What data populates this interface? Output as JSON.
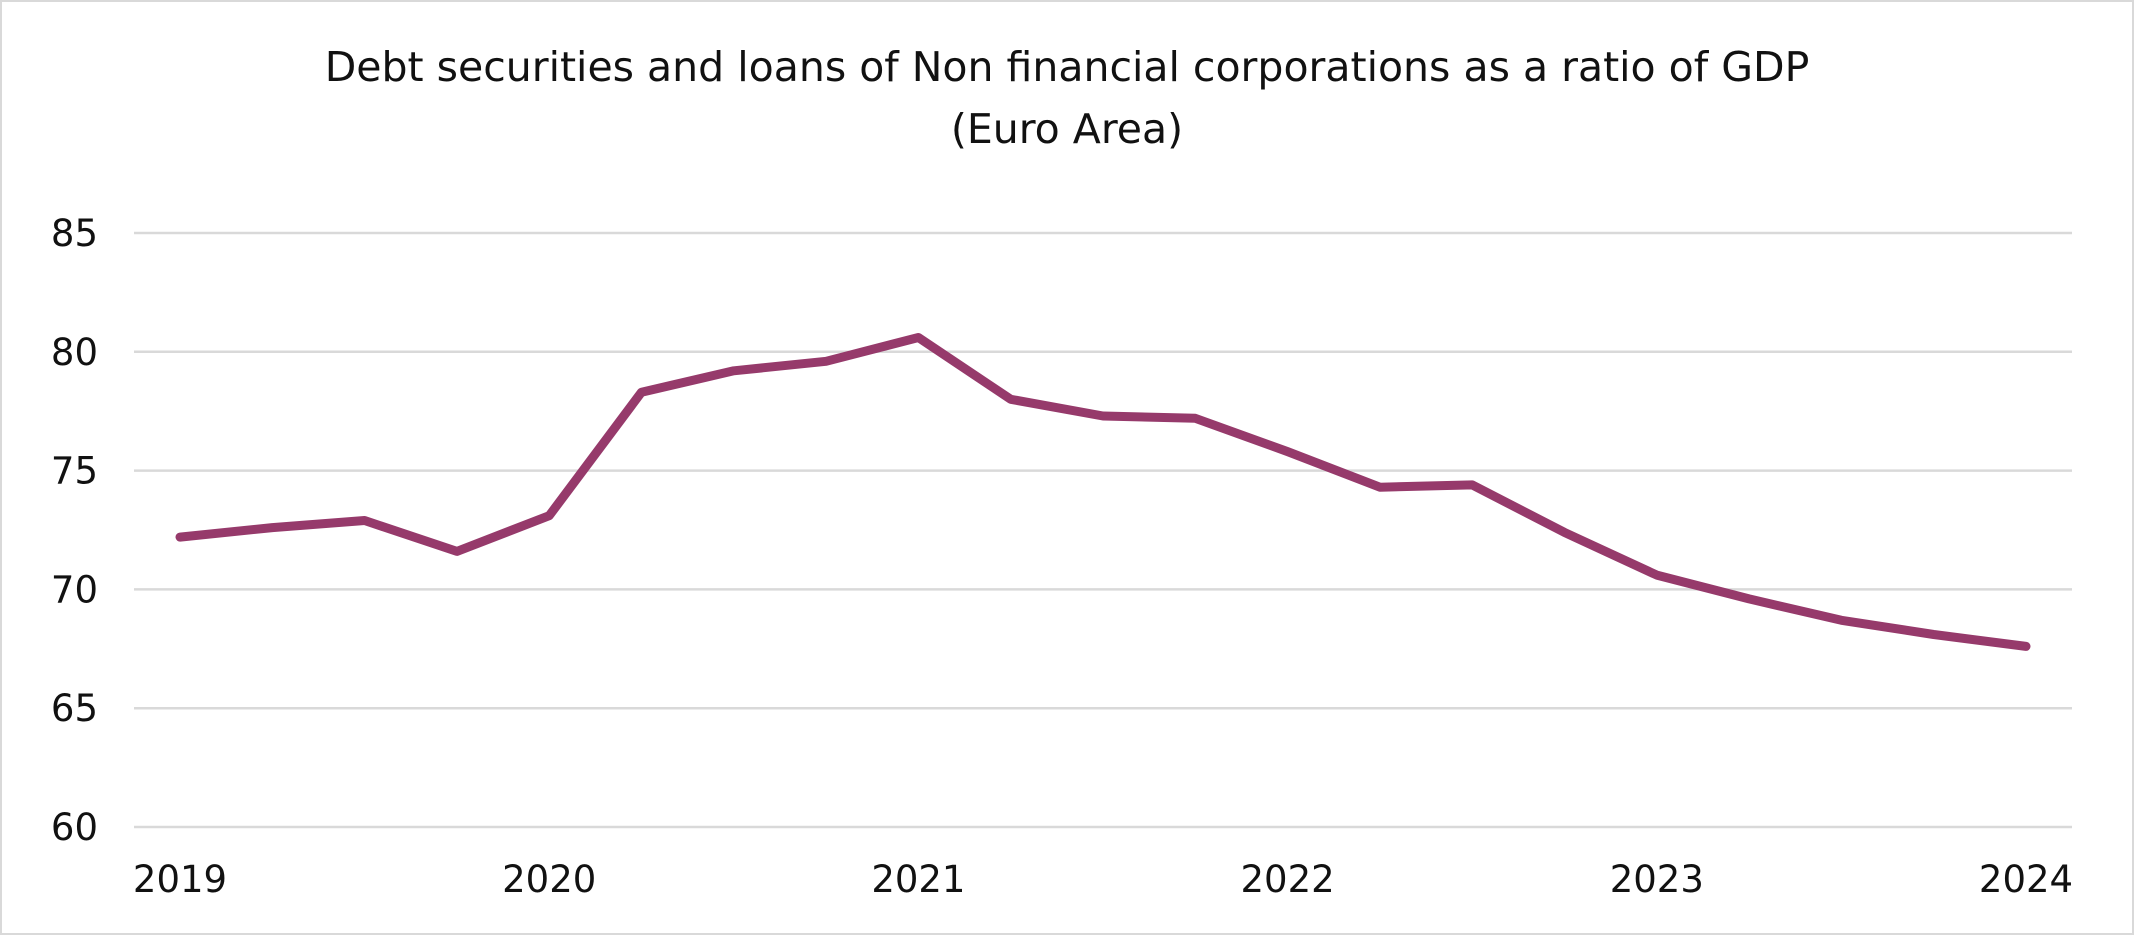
{
  "chart_data": {
    "type": "line",
    "title": "Debt securities and loans of Non financial corporations as a ratio of GDP",
    "subtitle": "(Euro Area)",
    "xlabel": "",
    "ylabel": "",
    "ylim": [
      60,
      85
    ],
    "yticks": [
      "60",
      "65",
      "70",
      "75",
      "80",
      "85"
    ],
    "xlim": [
      2019,
      2024
    ],
    "xticks": [
      "2019",
      "2020",
      "2021",
      "2022",
      "2023",
      "2024"
    ],
    "grid": true,
    "legend": "none",
    "series": [
      {
        "color": "#963a6b",
        "x": [
          2019.0,
          2019.25,
          2019.5,
          2019.75,
          2020.0,
          2020.25,
          2020.5,
          2020.75,
          2021.0,
          2021.25,
          2021.5,
          2021.75,
          2022.0,
          2022.25,
          2022.5,
          2022.75,
          2023.0,
          2023.25,
          2023.5,
          2023.75,
          2024.0
        ],
        "y": [
          72.2,
          72.6,
          72.9,
          71.6,
          73.1,
          78.3,
          79.2,
          79.6,
          80.6,
          78.0,
          77.3,
          77.2,
          75.8,
          74.3,
          74.4,
          72.4,
          70.6,
          69.6,
          68.7,
          68.1,
          67.6
        ]
      }
    ]
  }
}
